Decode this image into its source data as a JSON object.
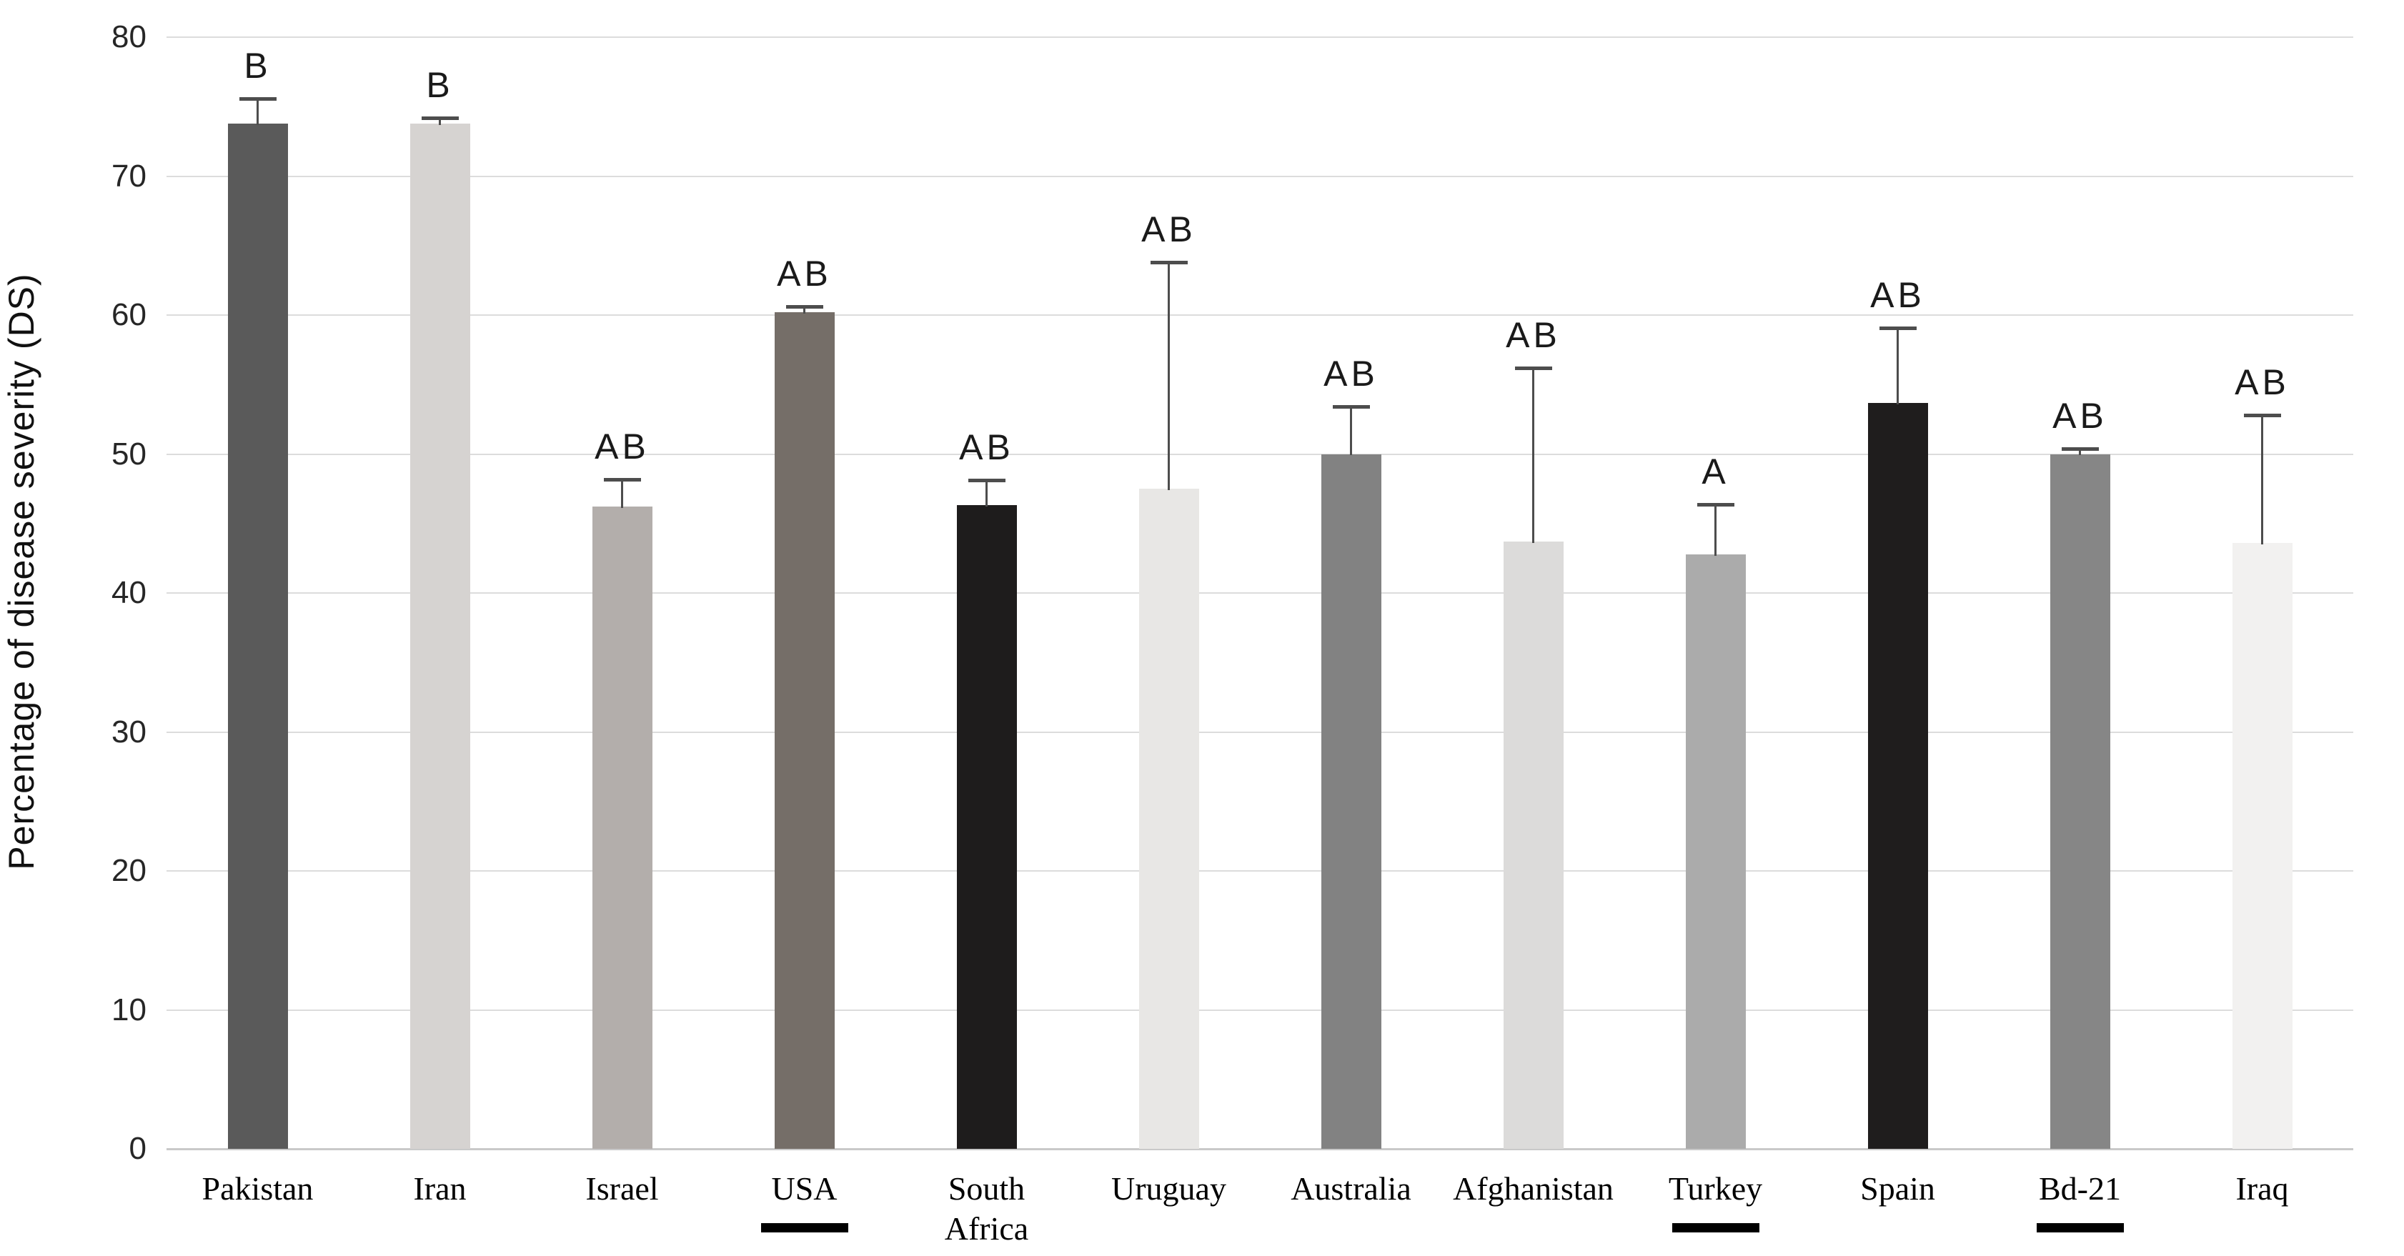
{
  "chart_data": {
    "type": "bar",
    "title": "",
    "xlabel": "",
    "ylabel": "Percentage of disease severity (DS)",
    "ylim": [
      0,
      80
    ],
    "yticks": [
      0,
      10,
      20,
      30,
      40,
      50,
      60,
      70,
      80
    ],
    "grid": "horizontal",
    "legend": "none",
    "categories": [
      "Pakistan",
      "Iran",
      "Israel",
      "USA",
      "South\nAfrica",
      "Uruguay",
      "Australia",
      "Afghanistan",
      "Turkey",
      "Spain",
      "Bd-21",
      "Iraq"
    ],
    "values": [
      73.8,
      73.8,
      46.2,
      60.2,
      46.3,
      47.5,
      50.0,
      43.7,
      42.8,
      53.7,
      50.0,
      43.6
    ],
    "error_upper": [
      1.8,
      0.4,
      2.0,
      0.4,
      1.8,
      16.3,
      3.4,
      12.5,
      3.6,
      5.4,
      0.4,
      9.2
    ],
    "sig_labels": [
      "B",
      "B",
      "AB",
      "AB",
      "AB",
      "AB",
      "AB",
      "AB",
      "A",
      "AB",
      "AB",
      "AB"
    ],
    "underlined": [
      false,
      false,
      false,
      true,
      false,
      false,
      false,
      false,
      true,
      false,
      true,
      false
    ],
    "bar_colors": [
      "#5a5a5a",
      "#d6d3d1",
      "#b3aeab",
      "#756e68",
      "#1e1c1c",
      "#e8e7e5",
      "#828282",
      "#dcdbda",
      "#ababab",
      "#1f1d1d",
      "#868686",
      "#f2f1f0"
    ],
    "colors": {
      "gridline": "#dcdcdc",
      "axis_line": "#c9c9c9",
      "error_bar": "#4d4d4d",
      "tick_text": "#262626",
      "label_text": "#000000",
      "underline": "#000000"
    }
  }
}
